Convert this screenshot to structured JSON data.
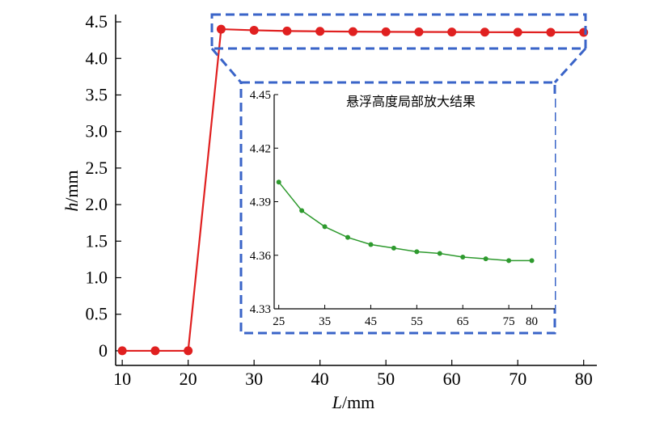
{
  "chart_data": [
    {
      "type": "line",
      "x": [
        10,
        15,
        20,
        25,
        30,
        35,
        40,
        45,
        50,
        55,
        60,
        65,
        70,
        75,
        80
      ],
      "series": [
        {
          "values": [
            0,
            0,
            0,
            4.4,
            4.385,
            4.375,
            4.37,
            4.366,
            4.364,
            4.362,
            4.361,
            4.359,
            4.358,
            4.357,
            4.357
          ],
          "color": "#e02020"
        }
      ],
      "xlabel_italic": "L",
      "xlabel_unit": "/mm",
      "ylabel_italic": "h",
      "ylabel_unit": "/mm",
      "xlim": [
        9,
        82
      ],
      "ylim": [
        -0.2,
        4.6
      ],
      "x_ticks": [
        "10",
        "20",
        "30",
        "40",
        "50",
        "60",
        "70",
        "80"
      ],
      "y_ticks": [
        "0",
        "0.5",
        "1.0",
        "1.5",
        "2.0",
        "2.5",
        "3.0",
        "3.5",
        "4.0",
        "4.5"
      ],
      "grid": false,
      "highlight_box_color": "#3a64c8"
    },
    {
      "type": "line",
      "title": "悬浮高度局部放大结果",
      "x": [
        25,
        30,
        35,
        40,
        45,
        50,
        55,
        60,
        65,
        70,
        75,
        80
      ],
      "series": [
        {
          "values": [
            4.401,
            4.385,
            4.376,
            4.37,
            4.366,
            4.364,
            4.362,
            4.361,
            4.359,
            4.358,
            4.357,
            4.357
          ],
          "color": "#2e9a2e"
        }
      ],
      "xlim": [
        24,
        85
      ],
      "ylim": [
        4.33,
        4.45
      ],
      "x_ticks": [
        "25",
        "35",
        "45",
        "55",
        "65",
        "75",
        "80"
      ],
      "y_ticks": [
        "4.33",
        "4.36",
        "4.39",
        "4.42",
        "4.45"
      ],
      "grid": false
    }
  ]
}
